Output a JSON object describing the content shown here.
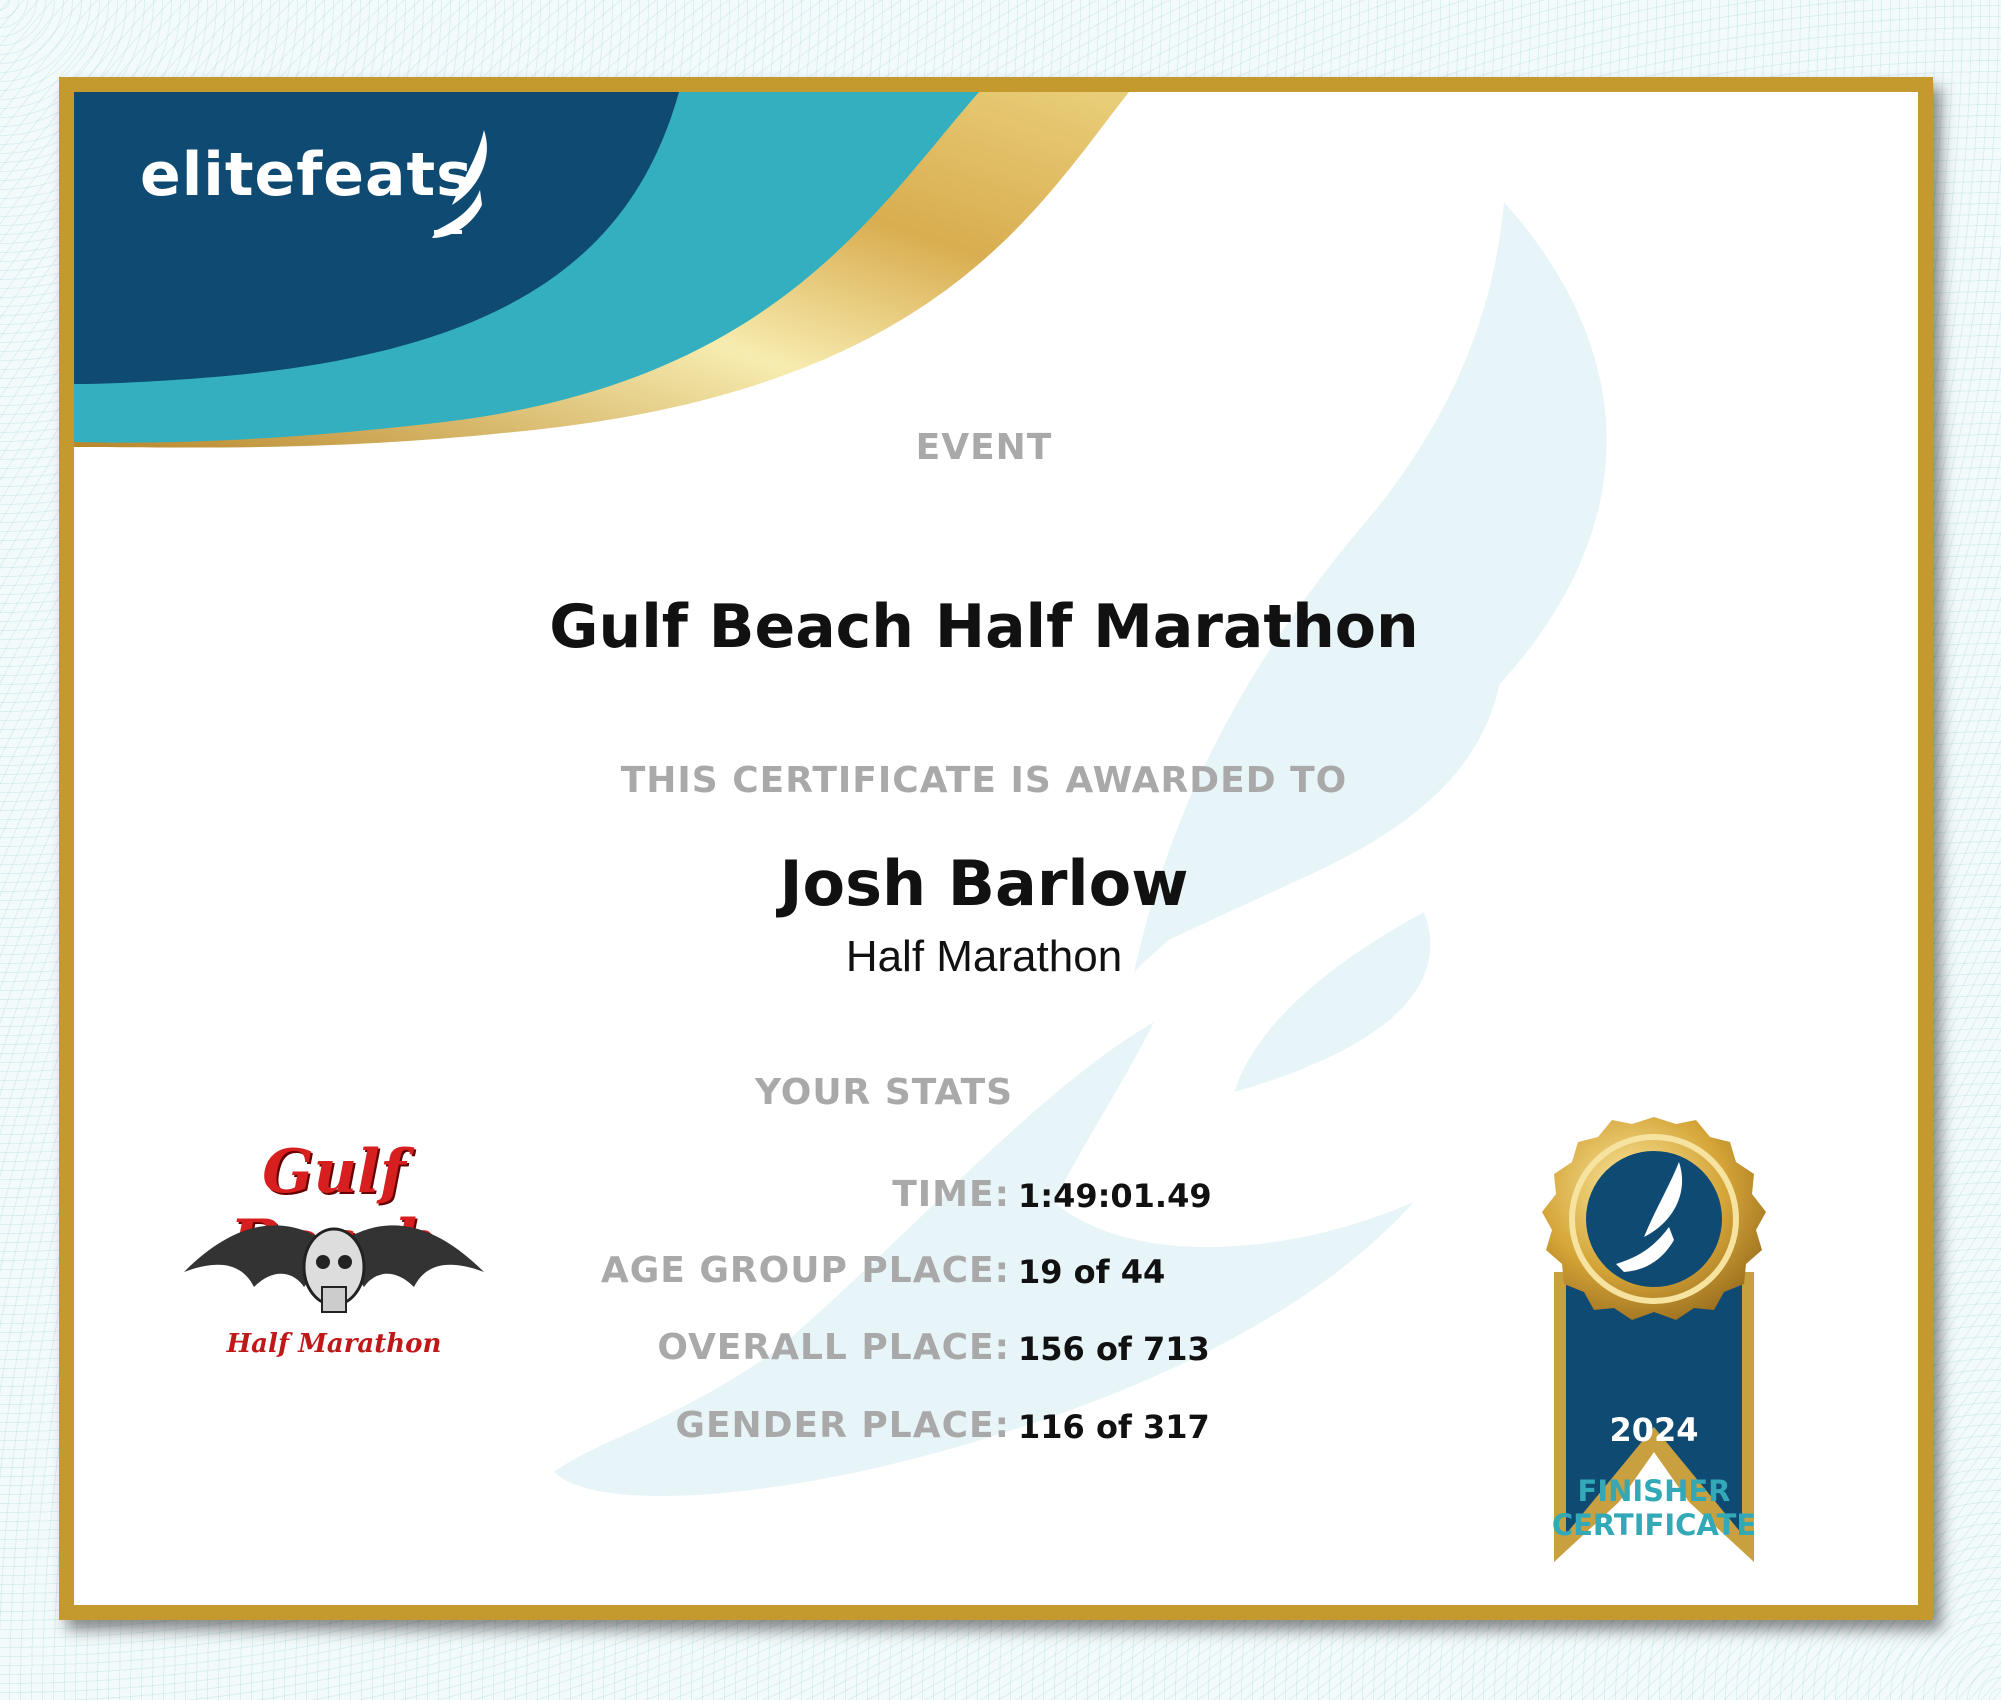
{
  "brand": {
    "name": "elitefeats",
    "colors": {
      "navy": "#0f4a72",
      "teal": "#33afbf",
      "gold": "#c49a2e"
    }
  },
  "event": {
    "label": "EVENT",
    "title": "Gulf Beach Half Marathon"
  },
  "award": {
    "label": "THIS CERTIFICATE IS AWARDED TO",
    "name": "Josh Barlow",
    "race": "Half Marathon"
  },
  "stats": {
    "label": "YOUR STATS",
    "rows": [
      {
        "key": "TIME:",
        "value": "1:49:01.49"
      },
      {
        "key": "AGE GROUP PLACE:",
        "value": "19 of 44"
      },
      {
        "key": "OVERALL PLACE:",
        "value": "156 of 713"
      },
      {
        "key": "GENDER PLACE:",
        "value": "116 of 317"
      }
    ]
  },
  "event_logo": {
    "title": "Gulf Beach",
    "subtitle": "Half Marathon"
  },
  "badge": {
    "year": "2024",
    "line1": "FINISHER",
    "line2": "CERTIFICATE",
    "icon": "winged-foot-icon"
  }
}
